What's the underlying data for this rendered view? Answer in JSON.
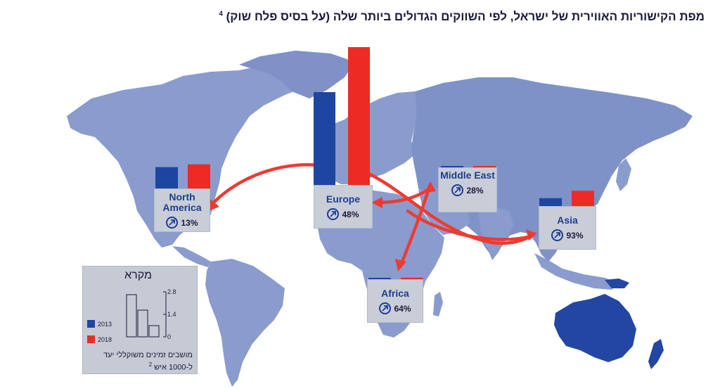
{
  "title": "מפת הקישוריות האווירית של ישראל, לפי השווקים הגדולים ביותר שלה (על בסיס פלח שוק)",
  "title_footnote": "4",
  "colors": {
    "y2013": "#1d46a0",
    "y2018": "#ee2a24",
    "land": "#8a9ccd",
    "land_dark": "#6f83bf",
    "ocean": "#ffffff",
    "arrow": "#ee3a33"
  },
  "chart_data": {
    "type": "bar",
    "series": [
      {
        "name": "2013"
      },
      {
        "name": "2018"
      }
    ],
    "regions": [
      {
        "key": "europe",
        "name": "Europe",
        "growth": "48%",
        "v2013": 2.0,
        "v2018": 2.97
      },
      {
        "key": "north_america",
        "name": "North America",
        "growth": "13%",
        "v2013": 0.46,
        "v2018": 0.52
      },
      {
        "key": "middle_east",
        "name": "Middle East",
        "growth": "28%",
        "v2013": 0.02,
        "v2018": 0.025
      },
      {
        "key": "asia",
        "name": "Asia",
        "growth": "93%",
        "v2013": 0.17,
        "v2018": 0.33
      },
      {
        "key": "africa",
        "name": "Africa",
        "growth": "64%",
        "v2013": 0.02,
        "v2018": 0.033
      }
    ]
  },
  "legend": {
    "title": "מקרא",
    "items": [
      {
        "label": "2013",
        "color": "#1d46a0"
      },
      {
        "label": "2018",
        "color": "#ee2a24"
      }
    ],
    "ticks": [
      "2.8",
      "1.4",
      "0"
    ],
    "note": "מושבים זמינים משוקללי יעד ל-1000 איש",
    "note_footnote": "2"
  }
}
